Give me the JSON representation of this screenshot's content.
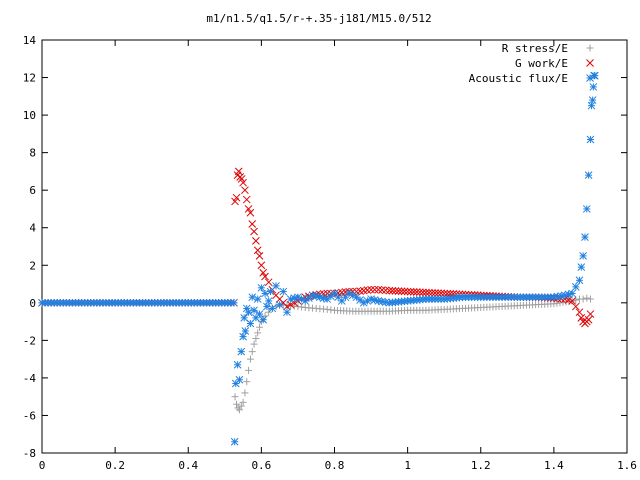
{
  "chart_data": {
    "type": "scatter",
    "title": "m1/n1.5/q1.5/r-+.35-j181/M15.0/512",
    "xlabel": "",
    "ylabel": "",
    "xlim": [
      0,
      1.6
    ],
    "ylim": [
      -8,
      14
    ],
    "grid": false,
    "legend_position": "top-right",
    "x_ticks": [
      0,
      0.2,
      0.4,
      0.6,
      0.8,
      1,
      1.2,
      1.4,
      1.6
    ],
    "x_tick_labels": [
      "0",
      "0.2",
      "0.4",
      "0.6",
      "0.8",
      "1",
      "1.2",
      "1.4",
      "1.6"
    ],
    "y_ticks": [
      -8,
      -6,
      -4,
      -2,
      0,
      2,
      4,
      6,
      8,
      10,
      12,
      14
    ],
    "y_tick_labels": [
      "-8",
      "-6",
      "-4",
      "-2",
      "0",
      "2",
      "4",
      "6",
      "8",
      "10",
      "12",
      "14"
    ],
    "series": [
      {
        "name": "R stress/E",
        "marker": "plus",
        "color": "#a0a0a0",
        "points": [
          [
            0.0,
            0.0
          ],
          [
            0.05,
            0.0
          ],
          [
            0.1,
            0.0
          ],
          [
            0.15,
            0.0
          ],
          [
            0.2,
            0.0
          ],
          [
            0.25,
            0.0
          ],
          [
            0.3,
            0.0
          ],
          [
            0.35,
            0.0
          ],
          [
            0.4,
            0.0
          ],
          [
            0.45,
            0.0
          ],
          [
            0.5,
            0.0
          ],
          [
            0.525,
            0.0
          ],
          [
            0.528,
            -5.0
          ],
          [
            0.532,
            -5.4
          ],
          [
            0.536,
            -5.6
          ],
          [
            0.54,
            -5.7
          ],
          [
            0.545,
            -5.5
          ],
          [
            0.55,
            -5.3
          ],
          [
            0.555,
            -4.8
          ],
          [
            0.56,
            -4.2
          ],
          [
            0.565,
            -3.6
          ],
          [
            0.57,
            -3.0
          ],
          [
            0.575,
            -2.6
          ],
          [
            0.58,
            -2.2
          ],
          [
            0.585,
            -1.9
          ],
          [
            0.59,
            -1.6
          ],
          [
            0.595,
            -1.3
          ],
          [
            0.6,
            -1.0
          ],
          [
            0.61,
            -0.7
          ],
          [
            0.62,
            -0.5
          ],
          [
            0.63,
            -0.3
          ],
          [
            0.64,
            -0.2
          ],
          [
            0.66,
            -0.1
          ],
          [
            0.68,
            -0.15
          ],
          [
            0.7,
            -0.2
          ],
          [
            0.72,
            -0.25
          ],
          [
            0.75,
            -0.3
          ],
          [
            0.78,
            -0.35
          ],
          [
            0.8,
            -0.4
          ],
          [
            0.85,
            -0.45
          ],
          [
            0.9,
            -0.45
          ],
          [
            0.95,
            -0.45
          ],
          [
            1.0,
            -0.4
          ],
          [
            1.05,
            -0.4
          ],
          [
            1.1,
            -0.35
          ],
          [
            1.15,
            -0.3
          ],
          [
            1.2,
            -0.25
          ],
          [
            1.25,
            -0.2
          ],
          [
            1.3,
            -0.15
          ],
          [
            1.35,
            -0.1
          ],
          [
            1.4,
            -0.05
          ],
          [
            1.45,
            0.1
          ],
          [
            1.47,
            0.2
          ],
          [
            1.48,
            0.2
          ],
          [
            1.49,
            0.25
          ],
          [
            1.5,
            0.2
          ]
        ]
      },
      {
        "name": "G work/E",
        "marker": "cross",
        "color": "#e00000",
        "points": [
          [
            0.0,
            0.0
          ],
          [
            0.05,
            0.0
          ],
          [
            0.1,
            0.0
          ],
          [
            0.15,
            0.0
          ],
          [
            0.2,
            0.0
          ],
          [
            0.25,
            0.0
          ],
          [
            0.3,
            0.0
          ],
          [
            0.35,
            0.0
          ],
          [
            0.4,
            0.0
          ],
          [
            0.45,
            0.0
          ],
          [
            0.5,
            0.0
          ],
          [
            0.525,
            0.0
          ],
          [
            0.528,
            5.4
          ],
          [
            0.532,
            5.6
          ],
          [
            0.535,
            6.8
          ],
          [
            0.538,
            7.0
          ],
          [
            0.542,
            6.7
          ],
          [
            0.546,
            6.6
          ],
          [
            0.55,
            6.4
          ],
          [
            0.555,
            6.0
          ],
          [
            0.56,
            5.5
          ],
          [
            0.565,
            5.0
          ],
          [
            0.57,
            4.8
          ],
          [
            0.575,
            4.2
          ],
          [
            0.58,
            3.8
          ],
          [
            0.585,
            3.3
          ],
          [
            0.59,
            2.8
          ],
          [
            0.595,
            2.5
          ],
          [
            0.6,
            2.0
          ],
          [
            0.605,
            1.6
          ],
          [
            0.61,
            1.4
          ],
          [
            0.62,
            1.1
          ],
          [
            0.63,
            0.7
          ],
          [
            0.64,
            0.4
          ],
          [
            0.65,
            0.2
          ],
          [
            0.66,
            0.0
          ],
          [
            0.67,
            -0.2
          ],
          [
            0.68,
            -0.1
          ],
          [
            0.7,
            0.1
          ],
          [
            0.72,
            0.3
          ],
          [
            0.74,
            0.4
          ],
          [
            0.76,
            0.45
          ],
          [
            0.78,
            0.5
          ],
          [
            0.8,
            0.5
          ],
          [
            0.82,
            0.55
          ],
          [
            0.84,
            0.6
          ],
          [
            0.86,
            0.6
          ],
          [
            0.88,
            0.65
          ],
          [
            0.9,
            0.7
          ],
          [
            0.92,
            0.7
          ],
          [
            0.95,
            0.65
          ],
          [
            1.0,
            0.6
          ],
          [
            1.05,
            0.55
          ],
          [
            1.1,
            0.5
          ],
          [
            1.15,
            0.45
          ],
          [
            1.2,
            0.4
          ],
          [
            1.25,
            0.35
          ],
          [
            1.3,
            0.3
          ],
          [
            1.35,
            0.3
          ],
          [
            1.4,
            0.25
          ],
          [
            1.43,
            0.2
          ],
          [
            1.45,
            0.1
          ],
          [
            1.46,
            -0.2
          ],
          [
            1.47,
            -0.5
          ],
          [
            1.475,
            -0.8
          ],
          [
            1.48,
            -1.0
          ],
          [
            1.485,
            -1.1
          ],
          [
            1.49,
            -1.0
          ],
          [
            1.495,
            -0.9
          ],
          [
            1.5,
            -0.6
          ]
        ]
      },
      {
        "name": "Acoustic flux/E",
        "marker": "star",
        "color": "#2080e0",
        "points": [
          [
            0.0,
            0.0
          ],
          [
            0.05,
            0.0
          ],
          [
            0.1,
            0.0
          ],
          [
            0.15,
            0.0
          ],
          [
            0.2,
            0.0
          ],
          [
            0.25,
            0.0
          ],
          [
            0.3,
            0.0
          ],
          [
            0.35,
            0.0
          ],
          [
            0.4,
            0.0
          ],
          [
            0.45,
            0.0
          ],
          [
            0.5,
            0.0
          ],
          [
            0.525,
            0.0
          ],
          [
            0.527,
            -7.4
          ],
          [
            0.53,
            -4.3
          ],
          [
            0.535,
            -3.3
          ],
          [
            0.54,
            -4.1
          ],
          [
            0.545,
            -2.6
          ],
          [
            0.55,
            -1.8
          ],
          [
            0.553,
            -0.8
          ],
          [
            0.556,
            -1.5
          ],
          [
            0.56,
            -0.3
          ],
          [
            0.565,
            -0.5
          ],
          [
            0.57,
            -1.1
          ],
          [
            0.575,
            0.3
          ],
          [
            0.58,
            -0.4
          ],
          [
            0.585,
            -0.8
          ],
          [
            0.59,
            0.2
          ],
          [
            0.595,
            -0.6
          ],
          [
            0.6,
            0.8
          ],
          [
            0.605,
            -0.9
          ],
          [
            0.61,
            0.5
          ],
          [
            0.615,
            -0.2
          ],
          [
            0.62,
            0.1
          ],
          [
            0.625,
            0.6
          ],
          [
            0.63,
            -0.3
          ],
          [
            0.64,
            0.9
          ],
          [
            0.65,
            -0.1
          ],
          [
            0.66,
            0.6
          ],
          [
            0.67,
            -0.5
          ],
          [
            0.68,
            0.2
          ],
          [
            0.7,
            0.3
          ],
          [
            0.72,
            0.1
          ],
          [
            0.74,
            0.4
          ],
          [
            0.76,
            0.3
          ],
          [
            0.78,
            0.2
          ],
          [
            0.8,
            0.5
          ],
          [
            0.82,
            0.1
          ],
          [
            0.84,
            0.5
          ],
          [
            0.86,
            0.3
          ],
          [
            0.88,
            0.0
          ],
          [
            0.9,
            0.2
          ],
          [
            0.92,
            0.1
          ],
          [
            0.95,
            0.0
          ],
          [
            1.0,
            0.1
          ],
          [
            1.05,
            0.2
          ],
          [
            1.1,
            0.2
          ],
          [
            1.15,
            0.3
          ],
          [
            1.2,
            0.3
          ],
          [
            1.25,
            0.3
          ],
          [
            1.3,
            0.3
          ],
          [
            1.35,
            0.3
          ],
          [
            1.4,
            0.3
          ],
          [
            1.43,
            0.4
          ],
          [
            1.45,
            0.5
          ],
          [
            1.47,
            1.2
          ],
          [
            1.475,
            1.9
          ],
          [
            1.48,
            2.5
          ],
          [
            1.485,
            3.5
          ],
          [
            1.49,
            5.0
          ],
          [
            1.495,
            6.8
          ],
          [
            1.5,
            8.7
          ],
          [
            1.503,
            10.5
          ],
          [
            1.506,
            10.8
          ],
          [
            1.508,
            11.5
          ],
          [
            1.51,
            12.1
          ],
          [
            1.512,
            12.1
          ]
        ]
      }
    ]
  }
}
